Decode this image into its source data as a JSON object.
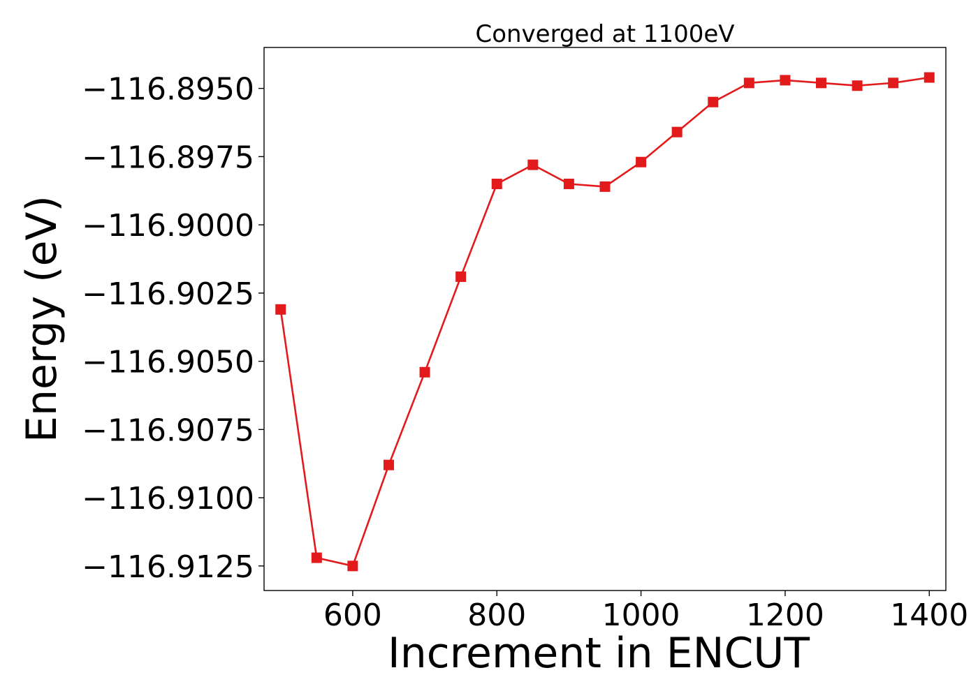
{
  "chart_data": {
    "type": "line",
    "title": "Converged at 1100eV",
    "xlabel": "Increment in ENCUT",
    "ylabel": "Energy (eV)",
    "xlim": [
      477,
      1423
    ],
    "ylim": [
      -116.9134,
      -116.8935
    ],
    "xticks": [
      600,
      800,
      1000,
      1200,
      1400
    ],
    "xtick_labels": [
      "600",
      "800",
      "1000",
      "1200",
      "1400"
    ],
    "yticks": [
      -116.9125,
      -116.91,
      -116.9075,
      -116.905,
      -116.9025,
      -116.9,
      -116.8975,
      -116.895
    ],
    "ytick_labels": [
      "−116.9125",
      "−116.9100",
      "−116.9075",
      "−116.9050",
      "−116.9025",
      "−116.9000",
      "−116.8975",
      "−116.8950"
    ],
    "grid": false,
    "series": [
      {
        "color": "#e31a1c",
        "marker": "square",
        "x": [
          500,
          550,
          600,
          650,
          700,
          750,
          800,
          850,
          900,
          950,
          1000,
          1050,
          1100,
          1150,
          1200,
          1250,
          1300,
          1350,
          1400
        ],
        "y": [
          -116.9031,
          -116.9122,
          -116.9125,
          -116.9088,
          -116.9054,
          -116.9019,
          -116.8985,
          -116.8978,
          -116.8985,
          -116.8986,
          -116.8977,
          -116.8966,
          -116.8955,
          -116.8948,
          -116.8947,
          -116.8948,
          -116.8949,
          -116.8948,
          -116.8946
        ]
      }
    ]
  }
}
